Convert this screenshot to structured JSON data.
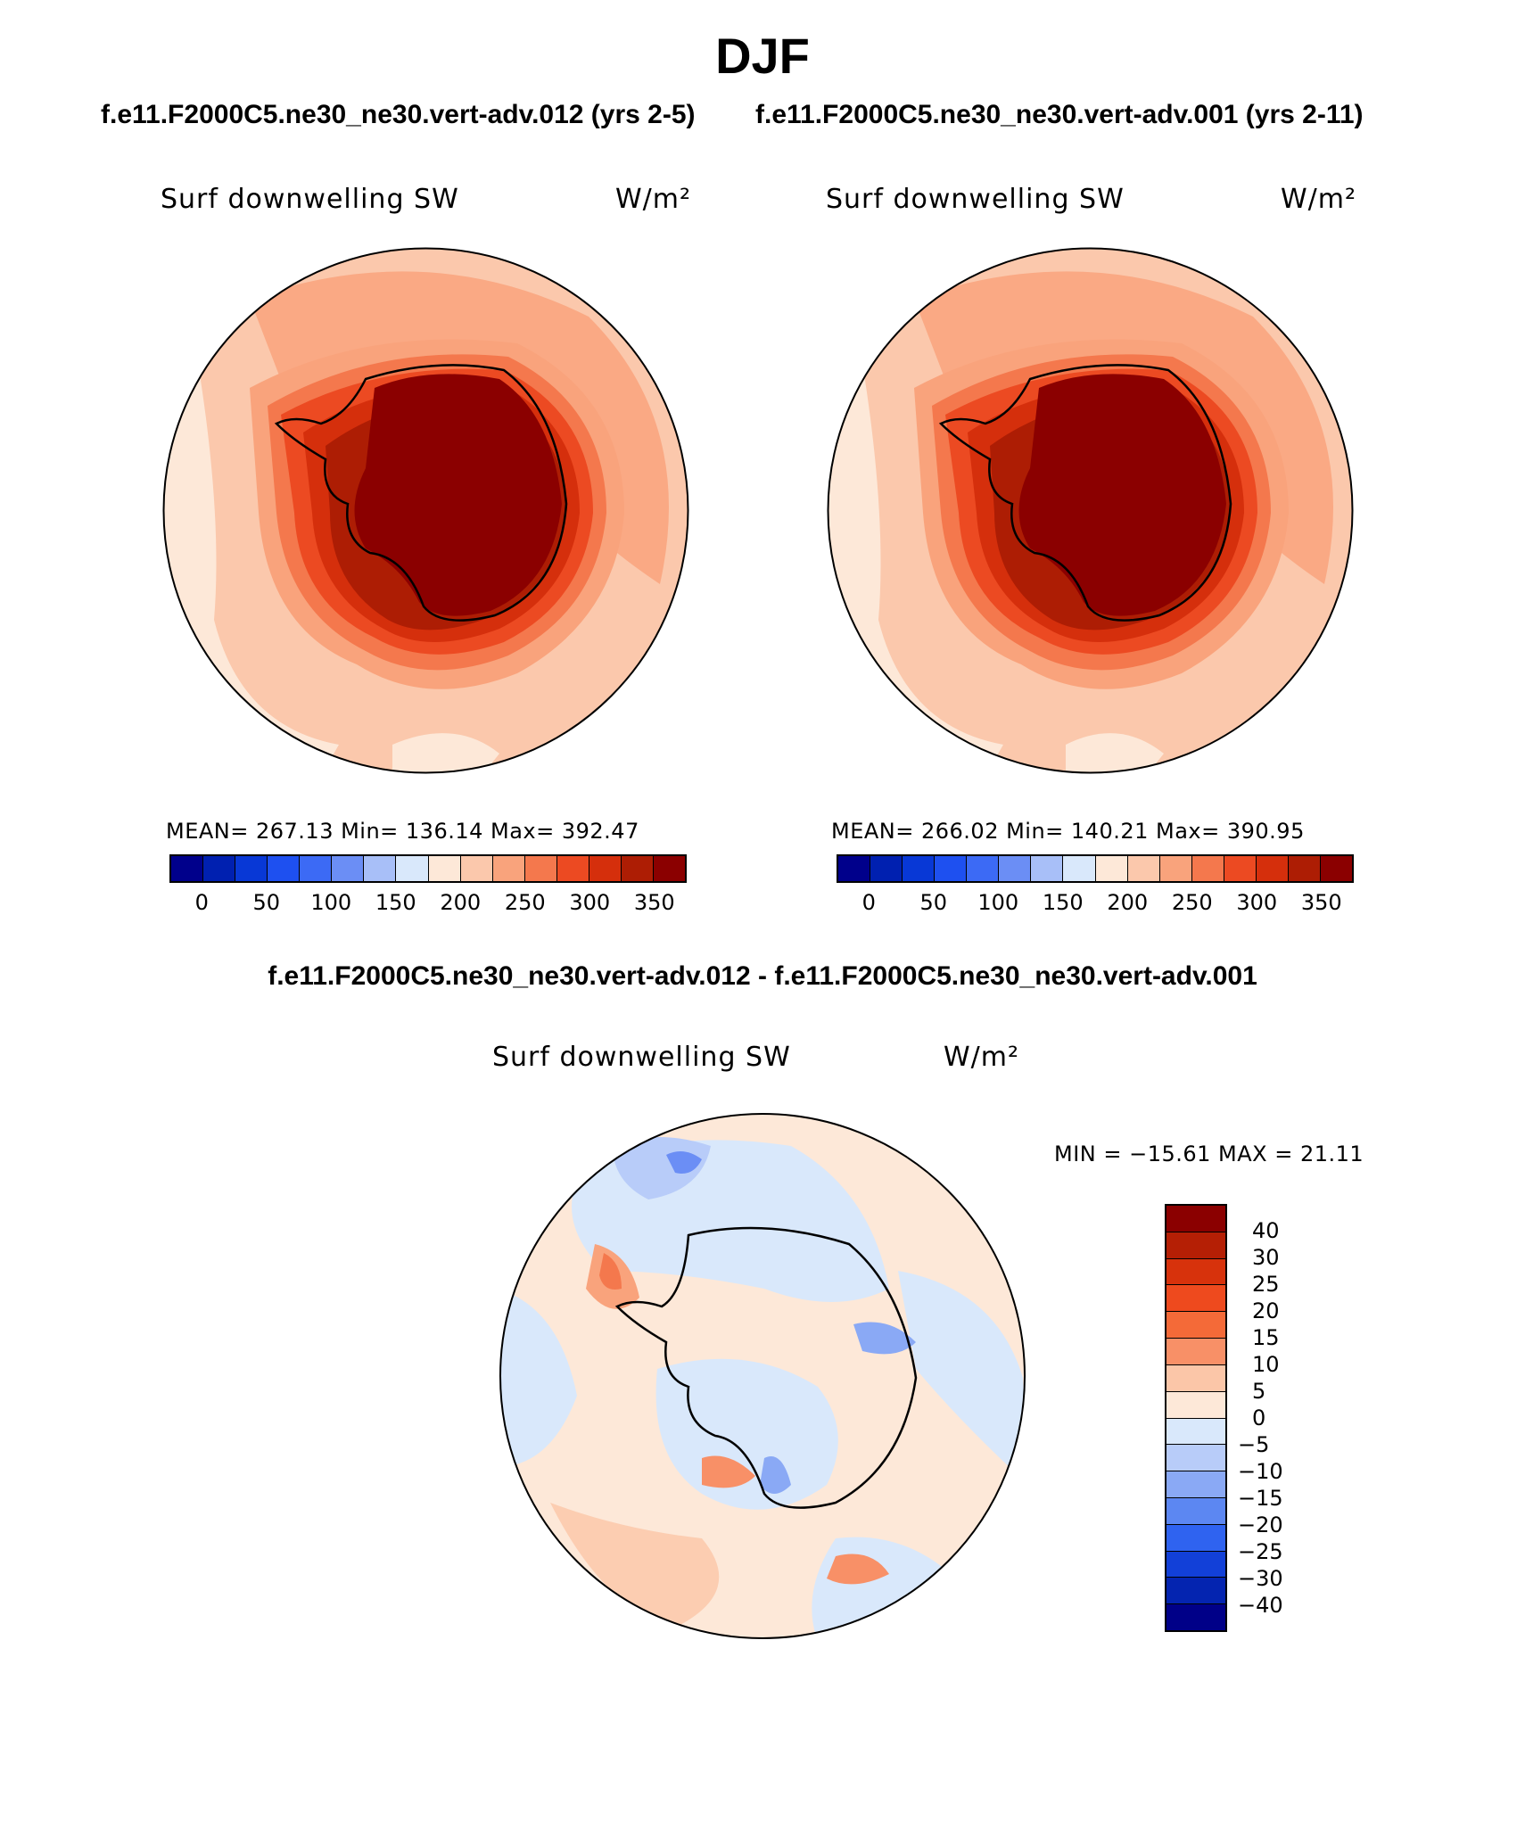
{
  "page": {
    "season": "DJF",
    "case_a_title": "f.e11.F2000C5.ne30_ne30.vert-adv.012 (yrs 2-5)",
    "case_b_title": "f.e11.F2000C5.ne30_ne30.vert-adv.001 (yrs 2-11)",
    "diff_title": "f.e11.F2000C5.ne30_ne30.vert-adv.012 - f.e11.F2000C5.ne30_ne30.vert-adv.001"
  },
  "panels": {
    "case_a": {
      "variable": "Surf downwelling SW",
      "units": "W/m²",
      "stats": "MEAN= 267.13   Min= 136.14   Max= 392.47",
      "mean": 267.13,
      "min": 136.14,
      "max": 392.47
    },
    "case_b": {
      "variable": "Surf downwelling SW",
      "units": "W/m²",
      "stats": "MEAN= 266.02   Min= 140.21   Max= 390.95",
      "mean": 266.02,
      "min": 140.21,
      "max": 390.95
    },
    "diff": {
      "variable": "Surf downwelling SW",
      "units": "W/m²",
      "stats": "MIN = −15.61 MAX =  21.11",
      "min": -15.61,
      "max": 21.11
    }
  },
  "colorbar_abs": {
    "colors": [
      "#00008b",
      "#0020b0",
      "#0838d6",
      "#1e50f0",
      "#3c6af5",
      "#6b8ef5",
      "#a8bff8",
      "#d9e8fb",
      "#fde8d8",
      "#fbc8ac",
      "#f9a37c",
      "#f4784d",
      "#ec4a22",
      "#d52f0c",
      "#ad1d04",
      "#8b0000"
    ],
    "tick_labels": [
      "0",
      "50",
      "100",
      "150",
      "200",
      "250",
      "300",
      "350"
    ]
  },
  "colorbar_diff": {
    "colors": [
      "#8b0000",
      "#b51f05",
      "#d7320c",
      "#ee4a1e",
      "#f46a38",
      "#f89067",
      "#fbc6a8",
      "#fde8d8",
      "#d9e8fb",
      "#b8ccf9",
      "#8aa9f5",
      "#5c87f2",
      "#2f63f0",
      "#1240d8",
      "#0424b0",
      "#000088"
    ],
    "tick_labels": [
      "40",
      "30",
      "25",
      "20",
      "15",
      "10",
      "5",
      "0",
      "−5",
      "−10",
      "−15",
      "−20",
      "−25",
      "−30",
      "−40"
    ]
  }
}
